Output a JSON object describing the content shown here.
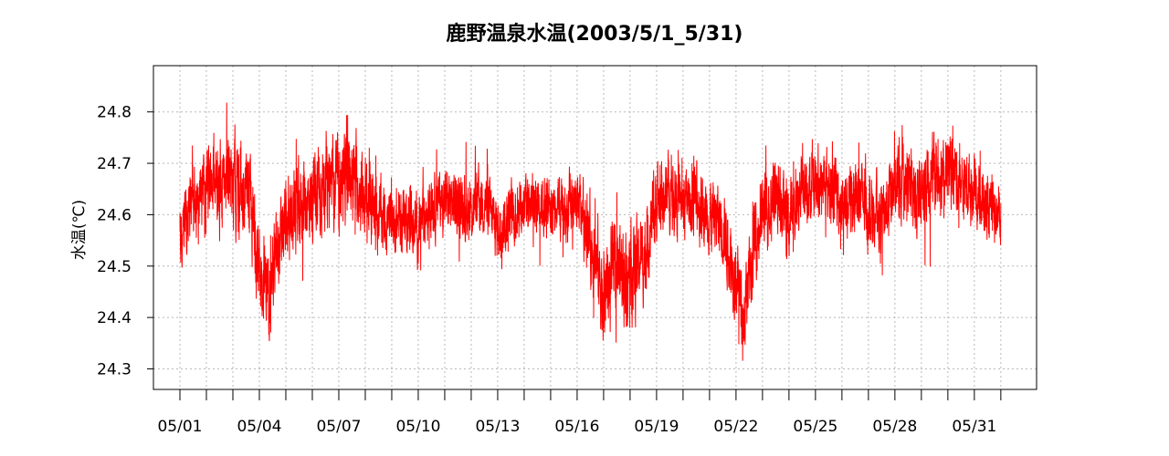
{
  "chart_data": {
    "type": "line",
    "title": "鹿野温泉水温(2003/5/1_5/31)",
    "xlabel": "",
    "ylabel": "水温(℃)",
    "x_range": [
      "2003-05-01",
      "2003-06-01"
    ],
    "ylim": [
      24.26,
      24.89
    ],
    "x_ticks": [
      "05/01",
      "05/04",
      "05/07",
      "05/10",
      "05/13",
      "05/16",
      "05/19",
      "05/22",
      "05/25",
      "05/28",
      "05/31"
    ],
    "y_ticks": [
      "24.3",
      "24.4",
      "24.5",
      "24.6",
      "24.7",
      "24.8"
    ],
    "grid": true,
    "legend": "none",
    "series": [
      {
        "color": "#ff0000",
        "x_unit": "day of May 2003",
        "points": [
          [
            1.0,
            24.56
          ],
          [
            1.5,
            24.62
          ],
          [
            2.0,
            24.65
          ],
          [
            2.5,
            24.68
          ],
          [
            3.0,
            24.64
          ],
          [
            3.5,
            24.66
          ],
          [
            4.0,
            24.5
          ],
          [
            4.3,
            24.46
          ],
          [
            4.7,
            24.52
          ],
          [
            5.0,
            24.58
          ],
          [
            5.5,
            24.62
          ],
          [
            6.0,
            24.63
          ],
          [
            6.5,
            24.67
          ],
          [
            7.0,
            24.66
          ],
          [
            7.5,
            24.68
          ],
          [
            8.0,
            24.63
          ],
          [
            8.5,
            24.6
          ],
          [
            9.0,
            24.58
          ],
          [
            9.5,
            24.6
          ],
          [
            10.0,
            24.57
          ],
          [
            10.5,
            24.62
          ],
          [
            11.0,
            24.63
          ],
          [
            11.5,
            24.62
          ],
          [
            12.0,
            24.61
          ],
          [
            12.5,
            24.63
          ],
          [
            13.0,
            24.57
          ],
          [
            13.5,
            24.6
          ],
          [
            14.0,
            24.62
          ],
          [
            14.5,
            24.63
          ],
          [
            15.0,
            24.61
          ],
          [
            15.5,
            24.6
          ],
          [
            16.0,
            24.63
          ],
          [
            16.5,
            24.55
          ],
          [
            17.0,
            24.45
          ],
          [
            17.5,
            24.5
          ],
          [
            18.0,
            24.48
          ],
          [
            18.5,
            24.52
          ],
          [
            19.0,
            24.62
          ],
          [
            19.5,
            24.65
          ],
          [
            20.0,
            24.62
          ],
          [
            20.5,
            24.63
          ],
          [
            21.0,
            24.6
          ],
          [
            21.5,
            24.58
          ],
          [
            22.0,
            24.48
          ],
          [
            22.3,
            24.4
          ],
          [
            22.7,
            24.55
          ],
          [
            23.0,
            24.6
          ],
          [
            23.5,
            24.64
          ],
          [
            24.0,
            24.58
          ],
          [
            24.5,
            24.66
          ],
          [
            25.0,
            24.65
          ],
          [
            25.5,
            24.66
          ],
          [
            26.0,
            24.62
          ],
          [
            26.5,
            24.64
          ],
          [
            27.0,
            24.62
          ],
          [
            27.5,
            24.6
          ],
          [
            28.0,
            24.66
          ],
          [
            28.5,
            24.65
          ],
          [
            29.0,
            24.63
          ],
          [
            29.5,
            24.68
          ],
          [
            30.0,
            24.7
          ],
          [
            30.5,
            24.66
          ],
          [
            31.0,
            24.65
          ],
          [
            31.5,
            24.61
          ],
          [
            32.0,
            24.6
          ]
        ],
        "amplitude": [
          [
            1.0,
            0.1
          ],
          [
            3.0,
            0.14
          ],
          [
            4.0,
            0.14
          ],
          [
            6.5,
            0.13
          ],
          [
            7.5,
            0.14
          ],
          [
            9.0,
            0.1
          ],
          [
            12.0,
            0.1
          ],
          [
            16.0,
            0.1
          ],
          [
            17.0,
            0.16
          ],
          [
            18.5,
            0.14
          ],
          [
            20.0,
            0.1
          ],
          [
            22.0,
            0.13
          ],
          [
            23.5,
            0.12
          ],
          [
            25.0,
            0.11
          ],
          [
            28.0,
            0.12
          ],
          [
            30.0,
            0.12
          ],
          [
            32.0,
            0.09
          ]
        ]
      }
    ]
  }
}
